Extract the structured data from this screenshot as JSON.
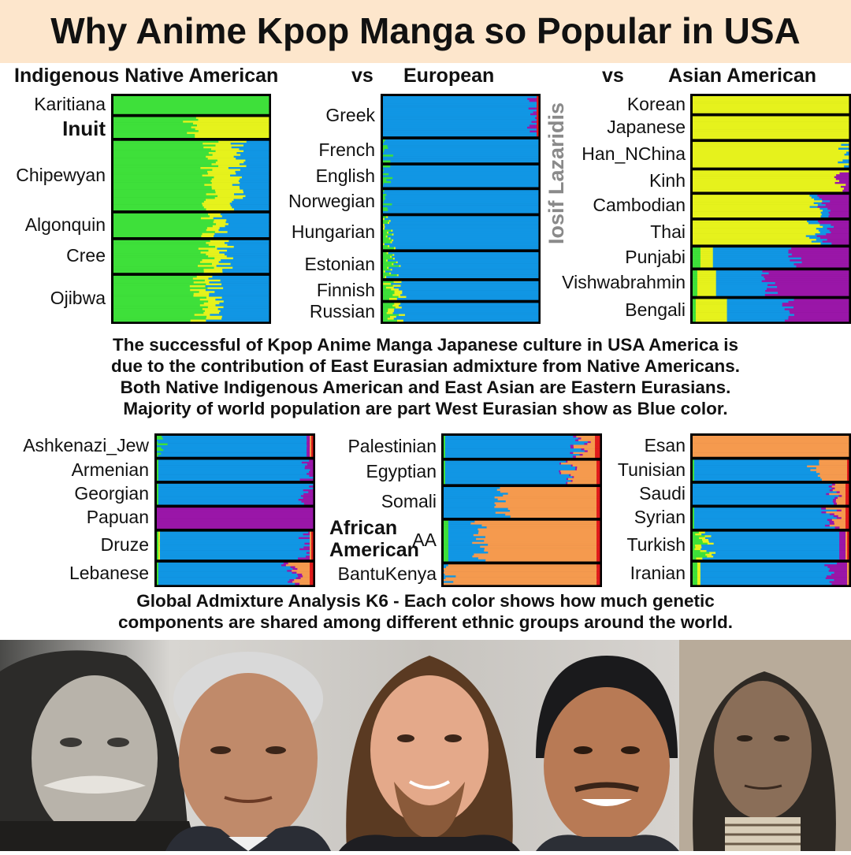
{
  "title": "Why Anime Kpop Manga so Popular in USA",
  "headers": {
    "native": "Indigenous Native American",
    "vs1": "vs",
    "european": "European",
    "vs2": "vs",
    "asian": "Asian American"
  },
  "watermark": "Iosif Lazaridis",
  "captions": {
    "middle": [
      "The successful of Kpop Anime Manga Japanese culture in USA America is",
      "due to the contribution of East Eurasian admixture from Native Americans.",
      "Both Native Indigenous American and East Asian are Eastern Eurasians.",
      "Majority of world population are part West Eurasian show as Blue color."
    ],
    "bottom": [
      "Global Admixture Analysis K6 - Each color shows how much genetic",
      "components are shared among different ethnic groups around the world."
    ]
  },
  "african_american_label": [
    "African",
    "American"
  ],
  "colors": {
    "green": "#3ee03a",
    "yellow": "#e6f21c",
    "blue": "#1196e4",
    "purple": "#9a16a8",
    "orange": "#f59a4e",
    "red": "#e01b1b",
    "title_band": "#fde6cc"
  },
  "chart_data": {
    "type": "bar",
    "components": [
      "green",
      "yellow",
      "blue",
      "purple",
      "orange",
      "red"
    ],
    "panels": [
      {
        "groups": [
          {
            "label": "Karitiana",
            "values": [
              1.0,
              0,
              0,
              0,
              0,
              0
            ]
          },
          {
            "label": "Inuit",
            "values": [
              0.5,
              0.5,
              0,
              0,
              0,
              0
            ]
          },
          {
            "label": "Chipewyan",
            "values": [
              0.62,
              0.18,
              0.2,
              0,
              0,
              0
            ]
          },
          {
            "label": "Algonquin",
            "values": [
              0.62,
              0.08,
              0.3,
              0,
              0,
              0
            ]
          },
          {
            "label": "Cree",
            "values": [
              0.6,
              0.12,
              0.28,
              0,
              0,
              0
            ]
          },
          {
            "label": "Ojibwa",
            "values": [
              0.55,
              0.1,
              0.35,
              0,
              0,
              0
            ]
          }
        ]
      },
      {
        "groups": [
          {
            "label": "Greek",
            "values": [
              0,
              0,
              0.97,
              0.02,
              0,
              0.01
            ]
          },
          {
            "label": "French",
            "values": [
              0.01,
              0,
              0.99,
              0,
              0,
              0
            ]
          },
          {
            "label": "English",
            "values": [
              0.01,
              0,
              0.99,
              0,
              0,
              0
            ]
          },
          {
            "label": "Norwegian",
            "values": [
              0.02,
              0,
              0.98,
              0,
              0,
              0
            ]
          },
          {
            "label": "Hungarian",
            "values": [
              0.02,
              0.01,
              0.97,
              0,
              0,
              0
            ]
          },
          {
            "label": "Estonian",
            "values": [
              0.05,
              0.01,
              0.94,
              0,
              0,
              0
            ]
          },
          {
            "label": "Finnish",
            "values": [
              0.06,
              0.05,
              0.89,
              0,
              0,
              0
            ]
          },
          {
            "label": "Russian",
            "values": [
              0.05,
              0.04,
              0.91,
              0,
              0,
              0
            ]
          }
        ]
      },
      {
        "groups": [
          {
            "label": "Korean",
            "values": [
              0,
              1.0,
              0,
              0,
              0,
              0
            ]
          },
          {
            "label": "Japanese",
            "values": [
              0,
              1.0,
              0,
              0,
              0,
              0
            ]
          },
          {
            "label": "Han_NChina",
            "values": [
              0,
              0.98,
              0.02,
              0,
              0,
              0
            ]
          },
          {
            "label": "Kinh",
            "values": [
              0,
              0.95,
              0,
              0.05,
              0,
              0
            ]
          },
          {
            "label": "Cambodian",
            "values": [
              0,
              0.8,
              0.05,
              0.15,
              0,
              0
            ]
          },
          {
            "label": "Thai",
            "values": [
              0,
              0.78,
              0.07,
              0.15,
              0,
              0
            ]
          },
          {
            "label": "Punjabi",
            "values": [
              0.05,
              0.08,
              0.52,
              0.35,
              0,
              0
            ]
          },
          {
            "label": "Vishwabrahmin",
            "values": [
              0.03,
              0.12,
              0.35,
              0.5,
              0,
              0
            ]
          },
          {
            "label": "Bengali",
            "values": [
              0.02,
              0.2,
              0.4,
              0.38,
              0,
              0
            ]
          }
        ]
      },
      {
        "groups": [
          {
            "label": "Ashkenazi_Jew",
            "values": [
              0.02,
              0,
              0.94,
              0.02,
              0.01,
              0.01
            ]
          },
          {
            "label": "Armenian",
            "values": [
              0.01,
              0,
              0.95,
              0.04,
              0,
              0
            ]
          },
          {
            "label": "Georgian",
            "values": [
              0.01,
              0,
              0.95,
              0.04,
              0,
              0
            ]
          },
          {
            "label": "Papuan",
            "values": [
              0,
              0,
              0,
              1.0,
              0,
              0
            ]
          },
          {
            "label": "Druze",
            "values": [
              0.01,
              0.01,
              0.94,
              0.02,
              0.01,
              0.01
            ]
          },
          {
            "label": "Lebanese",
            "values": [
              0.01,
              0,
              0.84,
              0.03,
              0.1,
              0.02
            ]
          }
        ]
      },
      {
        "groups": [
          {
            "label": "Palestinian",
            "values": [
              0.01,
              0,
              0.86,
              0.02,
              0.08,
              0.03
            ]
          },
          {
            "label": "Egyptian",
            "values": [
              0.01,
              0,
              0.78,
              0.01,
              0.18,
              0.02
            ]
          },
          {
            "label": "Somali",
            "values": [
              0,
              0,
              0.38,
              0,
              0.6,
              0.02
            ]
          },
          {
            "label": "AA",
            "values": [
              0.03,
              0,
              0.2,
              0,
              0.75,
              0.02
            ]
          },
          {
            "label": "BantuKenya",
            "values": [
              0,
              0,
              0.03,
              0,
              0.95,
              0.02
            ]
          }
        ]
      },
      {
        "groups": [
          {
            "label": "Esan",
            "values": [
              0,
              0,
              0,
              0,
              1.0,
              0
            ]
          },
          {
            "label": "Tunisian",
            "values": [
              0.01,
              0,
              0.78,
              0,
              0.2,
              0.01
            ]
          },
          {
            "label": "Saudi",
            "values": [
              0,
              0,
              0.9,
              0.02,
              0.06,
              0.02
            ]
          },
          {
            "label": "Syrian",
            "values": [
              0.01,
              0,
              0.86,
              0.03,
              0.08,
              0.02
            ]
          },
          {
            "label": "Turkish",
            "values": [
              0.05,
              0.04,
              0.85,
              0.04,
              0.01,
              0.01
            ]
          },
          {
            "label": "Iranian",
            "values": [
              0.03,
              0.02,
              0.82,
              0.12,
              0.01,
              0
            ]
          }
        ]
      }
    ]
  }
}
